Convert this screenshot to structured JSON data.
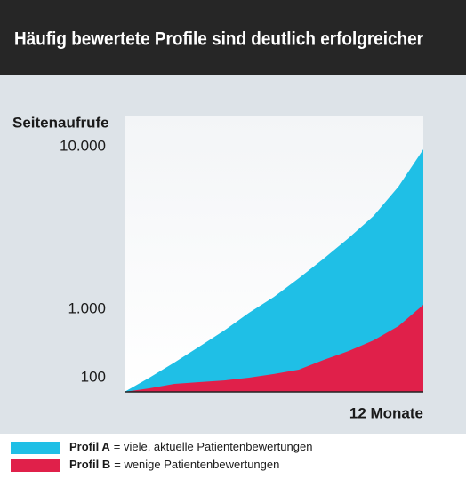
{
  "chart_data": {
    "type": "area",
    "title": "Häufig bewertete Profile sind deutlich erfolgreicher",
    "y_label": "Seitenaufrufe",
    "x_label": "12 Monate",
    "x": [
      0,
      1,
      2,
      3,
      4,
      5,
      6,
      7,
      8,
      9,
      10,
      11,
      12
    ],
    "xlim": [
      0,
      12
    ],
    "ylim": [
      62,
      15500
    ],
    "yticks": [
      {
        "value": 100,
        "label": "100"
      },
      {
        "value": 1000,
        "label": "1.000"
      },
      {
        "value": 10000,
        "label": "10.000"
      }
    ],
    "log_y": true,
    "series": [
      {
        "name": "Profil A",
        "description": "= viele, aktuelle Patientenbewertungen",
        "color": "#1fbfe6",
        "values": [
          62,
          100,
          166,
          284,
          488,
          887,
          1190,
          1550,
          2050,
          2740,
          3750,
          5680,
          9630
        ]
      },
      {
        "name": "Profil B",
        "description": "= wenige Patientenbewertungen",
        "color": "#e0204a",
        "values": [
          62,
          70,
          81,
          86,
          91,
          100,
          113,
          131,
          182,
          245,
          351,
          566,
          1065
        ]
      }
    ]
  }
}
